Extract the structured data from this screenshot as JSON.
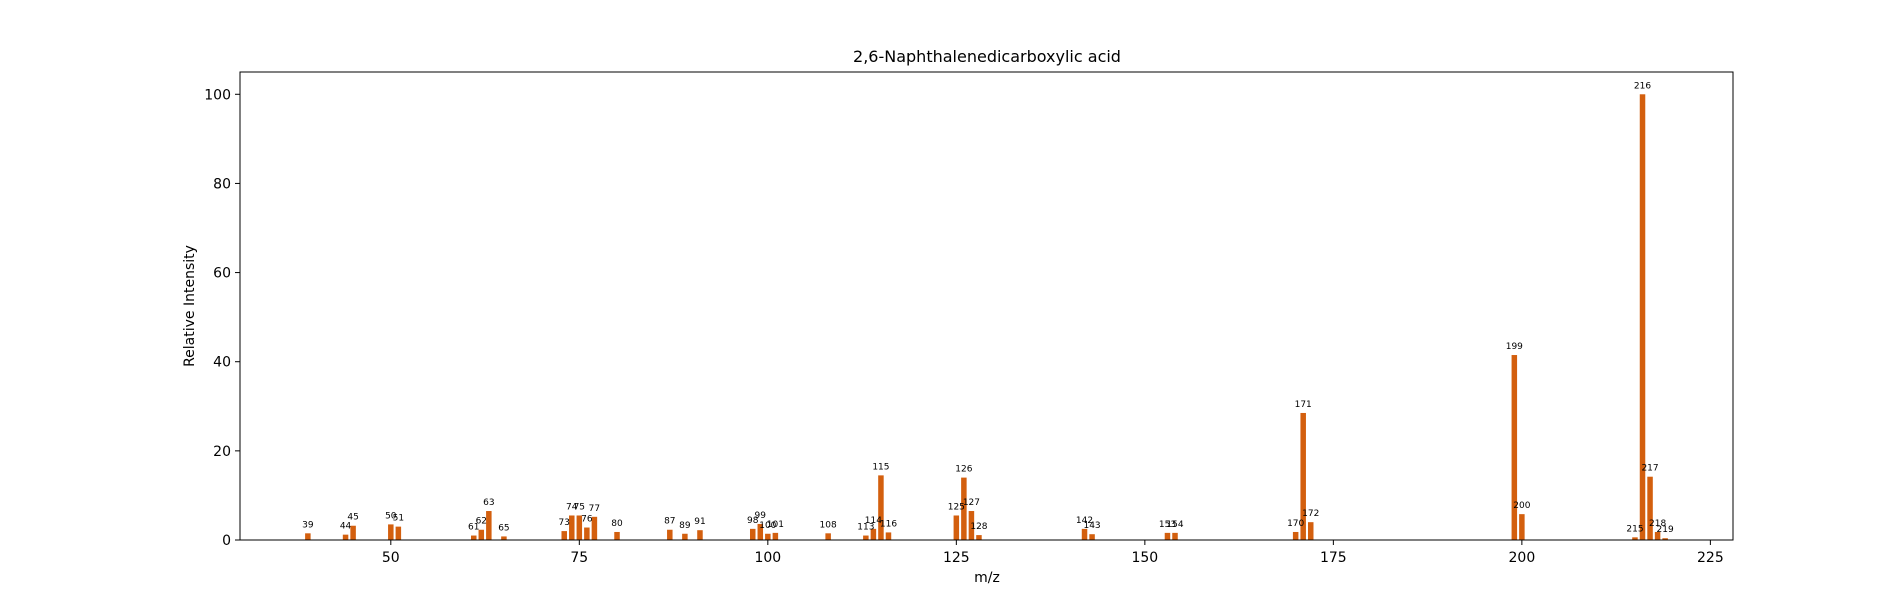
{
  "chart_data": {
    "type": "bar",
    "title": "2,6-Naphthalenedicarboxylic acid",
    "xlabel": "m/z",
    "ylabel": "Relative Intensity",
    "xlim": [
      30,
      228
    ],
    "ylim": [
      0,
      105
    ],
    "xticks": [
      50,
      75,
      100,
      125,
      150,
      175,
      200,
      225
    ],
    "yticks": [
      0,
      20,
      40,
      60,
      80,
      100
    ],
    "grid": false,
    "bar_color": "#d35f0e",
    "x": [
      39,
      44,
      45,
      50,
      51,
      61,
      62,
      63,
      65,
      73,
      74,
      75,
      76,
      77,
      80,
      87,
      89,
      91,
      98,
      99,
      100,
      101,
      108,
      113,
      114,
      115,
      116,
      125,
      126,
      127,
      128,
      142,
      143,
      153,
      154,
      170,
      171,
      172,
      199,
      200,
      215,
      216,
      217,
      218,
      219
    ],
    "values": [
      1.5,
      1.2,
      3.2,
      3.5,
      3.0,
      1.0,
      2.3,
      6.5,
      0.8,
      2.0,
      5.5,
      5.5,
      2.8,
      5.2,
      1.8,
      2.3,
      1.4,
      2.2,
      2.5,
      3.6,
      1.4,
      1.6,
      1.5,
      1.0,
      2.5,
      14.5,
      1.7,
      5.5,
      14.0,
      6.5,
      1.1,
      2.5,
      1.3,
      1.6,
      1.6,
      1.8,
      28.5,
      4.0,
      41.5,
      5.8,
      0.6,
      100,
      14.2,
      1.8,
      0.4
    ],
    "labels": [
      "39",
      "44",
      "45",
      "50",
      "51",
      "61",
      "62",
      "63",
      "65",
      "73",
      "74",
      "75",
      "76",
      "77",
      "80",
      "87",
      "89",
      "91",
      "98",
      "99",
      "100",
      "101",
      "108",
      "113",
      "114",
      "115",
      "116",
      "125",
      "126",
      "127",
      "128",
      "142",
      "143",
      "153",
      "154",
      "170",
      "171",
      "172",
      "199",
      "200",
      "215",
      "216",
      "217",
      "218",
      "219"
    ]
  }
}
